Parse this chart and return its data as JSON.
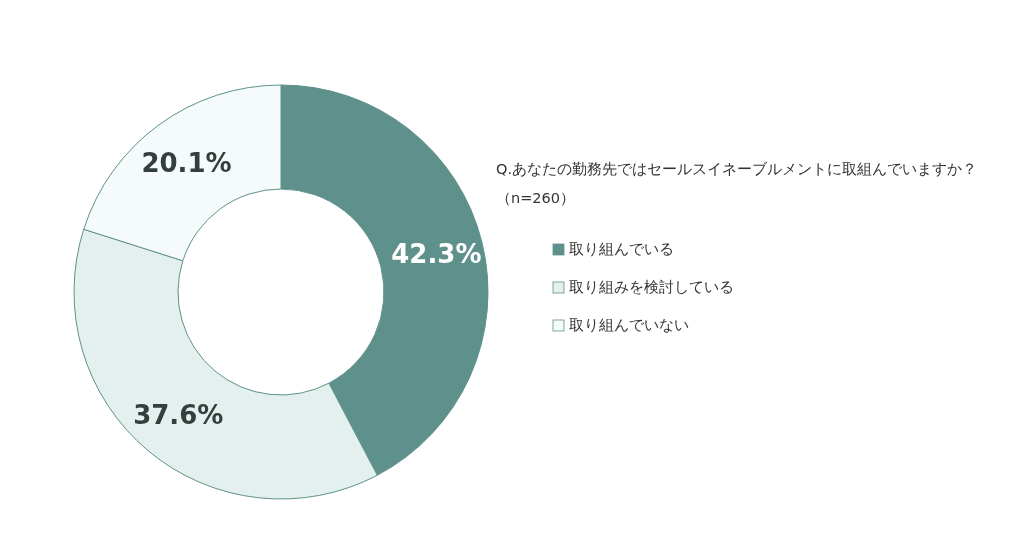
{
  "chart_data": {
    "type": "donut",
    "title": "Q.あなたの勤務先ではセールスイネーブルメントに取組んでいますか？",
    "subtitle": "（n=260）",
    "categories": [
      "取り組んでいる",
      "取り組みを検討している",
      "取り組んでいない"
    ],
    "values": [
      42.3,
      37.6,
      20.1
    ],
    "colors": [
      "#5f918c",
      "#e4f0ed",
      "#f5fafa"
    ],
    "value_labels": [
      "42.3%",
      "37.6%",
      "20.1%"
    ],
    "legend": "right"
  }
}
